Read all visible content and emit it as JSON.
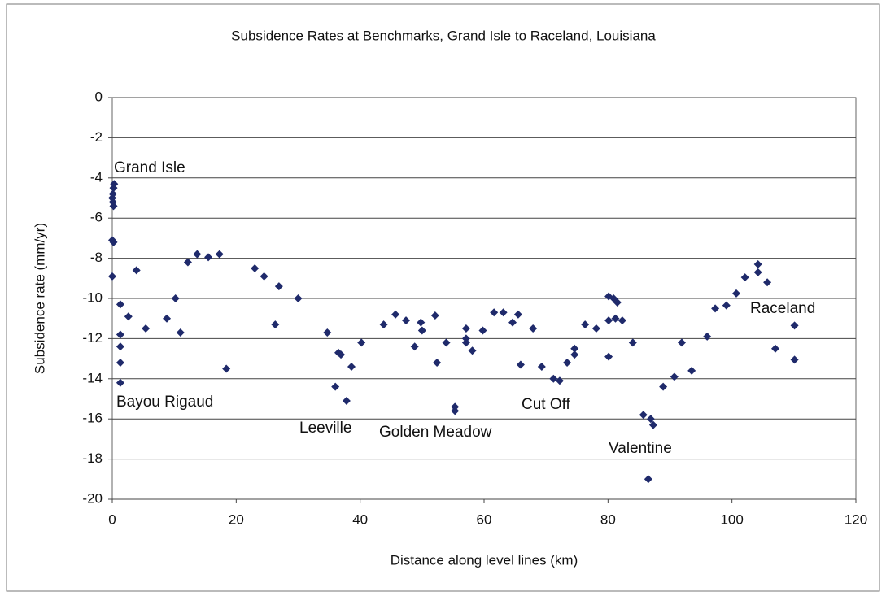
{
  "chart_data": {
    "type": "scatter",
    "title": "Subsidence Rates at Benchmarks, Grand Isle to Raceland, Louisiana",
    "x_label": "Distance along level lines (km)",
    "y_label": "Subsidence rate (mm/yr)",
    "annotations": [
      "Grand Isle",
      "Bayou Rigaud",
      "Leeville",
      "Golden Meadow",
      "Cut Off",
      "Valentine",
      "Raceland"
    ],
    "color": "#1f2a6b",
    "grid": true,
    "xlim": [
      0,
      120
    ],
    "xticks": [
      0,
      20,
      40,
      60,
      80,
      100,
      120
    ],
    "ylim": [
      -20,
      0
    ],
    "yticks": [
      0,
      -2,
      -4,
      -6,
      -8,
      -10,
      -12,
      -14,
      -16,
      -18,
      -20
    ],
    "x": [
      0.3,
      0.2,
      0.1,
      0,
      0.1,
      0.2,
      0,
      0.2,
      0,
      1.3,
      1.3,
      1.3,
      1.3,
      1.3,
      2.6,
      3.9,
      5.4,
      8.8,
      10.2,
      11,
      12.2,
      13.7,
      15.5,
      17.3,
      18.4,
      23,
      24.5,
      26.3,
      26.9,
      30,
      34.7,
      36,
      36.5,
      36.9,
      37.8,
      38.6,
      40.2,
      43.8,
      45.7,
      47.4,
      48.8,
      49.8,
      50,
      52.1,
      52.4,
      53.9,
      55.3,
      55.3,
      57.1,
      57.1,
      57.1,
      58.1,
      59.8,
      61.6,
      63.1,
      64.6,
      65.5,
      65.9,
      67.9,
      69.3,
      71.2,
      72.2,
      73.4,
      74.6,
      74.6,
      76.3,
      78.1,
      80.1,
      80.1,
      80.1,
      80.9,
      81.2,
      81.5,
      82.3,
      84,
      85.7,
      86.5,
      86.9,
      87.3,
      88.9,
      90.7,
      91.9,
      93.5,
      96,
      97.3,
      99.1,
      100.7,
      102.1,
      104.2,
      104.2,
      105.7,
      107,
      110.1,
      110.1
    ],
    "values": [
      -4.3,
      -4.5,
      -4.8,
      -5.0,
      -5.2,
      -5.4,
      -7.1,
      -7.2,
      -8.9,
      -10.3,
      -11.8,
      -12.4,
      -13.2,
      -14.2,
      -10.9,
      -8.6,
      -11.5,
      -11.0,
      -10.0,
      -11.7,
      -8.2,
      -7.8,
      -7.95,
      -7.8,
      -13.5,
      -8.5,
      -8.9,
      -11.3,
      -9.4,
      -10.0,
      -11.7,
      -14.4,
      -12.7,
      -12.8,
      -15.1,
      -13.4,
      -12.2,
      -11.3,
      -10.8,
      -11.1,
      -12.4,
      -11.2,
      -11.6,
      -10.85,
      -13.2,
      -12.2,
      -15.4,
      -15.6,
      -11.5,
      -12.0,
      -12.2,
      -12.6,
      -11.6,
      -10.7,
      -10.7,
      -11.2,
      -10.8,
      -13.3,
      -11.5,
      -13.4,
      -14.0,
      -14.1,
      -13.2,
      -12.8,
      -12.5,
      -11.3,
      -11.5,
      -9.9,
      -11.1,
      -12.9,
      -10.0,
      -11.0,
      -10.2,
      -11.1,
      -12.2,
      -15.8,
      -19.0,
      -16.0,
      -16.3,
      -14.4,
      -13.9,
      -12.2,
      -13.6,
      -11.9,
      -10.5,
      -10.35,
      -9.75,
      -8.95,
      -8.3,
      -8.7,
      -9.2,
      -12.5,
      -11.35,
      -13.05
    ]
  }
}
